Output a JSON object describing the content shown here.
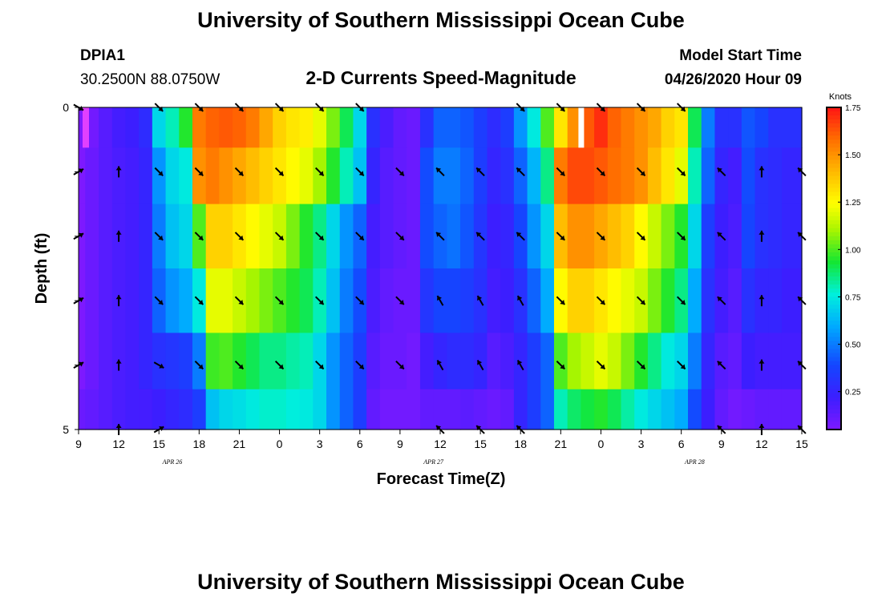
{
  "header": {
    "title": "University of Southern Mississippi Ocean Cube",
    "station_id": "DPIA1",
    "location": "30.2500N 88.0750W",
    "subtitle": "2-D Currents Speed-Magnitude",
    "model_label": "Model Start Time",
    "model_time": "04/26/2020 Hour 09"
  },
  "footer": {
    "title": "University of Southern Mississippi Ocean Cube"
  },
  "chart_data": {
    "type": "heatmap",
    "title": "2-D Currents Speed-Magnitude",
    "xlabel": "Forecast Time(Z)",
    "ylabel": "Depth (ft)",
    "x_tick_labels": [
      "9",
      "12",
      "15",
      "18",
      "21",
      "0",
      "3",
      "6",
      "9",
      "12",
      "15",
      "18",
      "21",
      "0",
      "3",
      "6",
      "9",
      "12",
      "15"
    ],
    "x_hours": [
      0,
      3,
      6,
      9,
      12,
      15,
      18,
      21,
      24,
      27,
      30,
      33,
      36,
      39,
      42,
      45,
      48,
      51,
      54
    ],
    "date_labels": [
      {
        "text": "APR 26",
        "hour": 7
      },
      {
        "text": "APR 27",
        "hour": 26.5
      },
      {
        "text": "APR 28",
        "hour": 46
      }
    ],
    "y_tick_labels": [
      "0",
      "5"
    ],
    "ylim": [
      0,
      5
    ],
    "depth_minor_ticks": [
      0,
      1,
      2,
      3,
      4,
      5
    ],
    "colorbar": {
      "unit": "Knots",
      "min": 0.05,
      "max": 1.75,
      "tick_labels": [
        "0.25",
        "0.50",
        "0.75",
        "1.00",
        "1.25",
        "1.50",
        "1.75"
      ],
      "tick_values": [
        0.25,
        0.5,
        0.75,
        1.0,
        1.25,
        1.5,
        1.75
      ]
    },
    "hours": [
      0,
      1,
      2,
      3,
      4,
      5,
      6,
      7,
      8,
      9,
      10,
      11,
      12,
      13,
      14,
      15,
      16,
      17,
      18,
      19,
      20,
      21,
      22,
      23,
      24,
      25,
      26,
      27,
      28,
      29,
      30,
      31,
      32,
      33,
      34,
      35,
      36,
      37,
      38,
      39,
      40,
      41,
      42,
      43,
      44,
      45,
      46,
      47,
      48,
      49,
      50,
      51,
      52,
      53,
      54
    ],
    "depth_layers": [
      {
        "depth": 0.25,
        "speed": [
          0.02,
          0.08,
          0.15,
          0.2,
          0.22,
          0.28,
          0.7,
          0.8,
          0.95,
          1.55,
          1.6,
          1.62,
          1.6,
          1.55,
          1.45,
          1.35,
          1.3,
          1.28,
          1.2,
          1.05,
          0.9,
          0.7,
          0.3,
          0.18,
          0.12,
          0.1,
          0.3,
          0.45,
          0.45,
          0.42,
          0.35,
          0.28,
          0.35,
          0.55,
          0.75,
          1.0,
          1.3,
          1.5,
          1.62,
          1.7,
          1.6,
          1.55,
          1.5,
          1.45,
          1.35,
          1.3,
          0.9,
          0.5,
          0.3,
          0.3,
          0.42,
          0.38,
          0.3,
          0.3,
          0.3
        ]
      },
      {
        "depth": 1.0,
        "speed": [
          0.05,
          0.1,
          0.15,
          0.18,
          0.2,
          0.25,
          0.55,
          0.7,
          0.75,
          1.5,
          1.55,
          1.5,
          1.45,
          1.4,
          1.35,
          1.3,
          1.25,
          1.2,
          1.1,
          0.95,
          0.8,
          0.65,
          0.25,
          0.15,
          0.12,
          0.1,
          0.4,
          0.5,
          0.5,
          0.45,
          0.35,
          0.25,
          0.3,
          0.45,
          0.62,
          0.85,
          1.55,
          1.65,
          1.65,
          1.62,
          1.58,
          1.55,
          1.5,
          1.4,
          1.3,
          1.2,
          0.8,
          0.45,
          0.25,
          0.2,
          0.4,
          0.3,
          0.28,
          0.25,
          0.25
        ]
      },
      {
        "depth": 2.0,
        "speed": [
          0.05,
          0.1,
          0.15,
          0.18,
          0.2,
          0.25,
          0.5,
          0.65,
          0.7,
          1.0,
          1.35,
          1.35,
          1.3,
          1.25,
          1.2,
          1.15,
          1.05,
          0.95,
          0.85,
          0.7,
          0.55,
          0.45,
          0.2,
          0.15,
          0.12,
          0.1,
          0.4,
          0.45,
          0.48,
          0.42,
          0.32,
          0.22,
          0.25,
          0.38,
          0.55,
          0.7,
          1.4,
          1.5,
          1.5,
          1.45,
          1.4,
          1.35,
          1.25,
          1.15,
          1.05,
          0.95,
          0.7,
          0.35,
          0.22,
          0.18,
          0.38,
          0.3,
          0.28,
          0.25,
          0.25
        ]
      },
      {
        "depth": 3.0,
        "speed": [
          0.05,
          0.1,
          0.15,
          0.18,
          0.2,
          0.25,
          0.45,
          0.55,
          0.6,
          0.75,
          1.2,
          1.2,
          1.15,
          1.1,
          1.05,
          1.0,
          0.95,
          0.9,
          0.8,
          0.65,
          0.5,
          0.4,
          0.18,
          0.12,
          0.1,
          0.1,
          0.32,
          0.38,
          0.38,
          0.35,
          0.3,
          0.2,
          0.22,
          0.3,
          0.45,
          0.6,
          1.25,
          1.35,
          1.35,
          1.3,
          1.25,
          1.2,
          1.15,
          1.05,
          0.95,
          0.85,
          0.6,
          0.3,
          0.2,
          0.15,
          0.3,
          0.25,
          0.25,
          0.22,
          0.22
        ]
      },
      {
        "depth": 4.0,
        "speed": [
          0.05,
          0.1,
          0.15,
          0.18,
          0.2,
          0.25,
          0.3,
          0.32,
          0.35,
          0.5,
          0.98,
          1.0,
          0.95,
          0.9,
          0.85,
          0.85,
          0.82,
          0.8,
          0.7,
          0.55,
          0.45,
          0.35,
          0.15,
          0.1,
          0.1,
          0.08,
          0.2,
          0.25,
          0.28,
          0.28,
          0.25,
          0.15,
          0.18,
          0.25,
          0.35,
          0.45,
          1.0,
          1.1,
          1.15,
          1.2,
          1.15,
          1.05,
          0.95,
          0.85,
          0.75,
          0.7,
          0.5,
          0.25,
          0.15,
          0.12,
          0.22,
          0.2,
          0.2,
          0.2,
          0.2
        ]
      },
      {
        "depth": 4.75,
        "speed": [
          0.1,
          0.12,
          0.15,
          0.18,
          0.2,
          0.2,
          0.22,
          0.25,
          0.28,
          0.35,
          0.65,
          0.7,
          0.72,
          0.75,
          0.78,
          0.78,
          0.76,
          0.75,
          0.7,
          0.55,
          0.45,
          0.35,
          0.12,
          0.08,
          0.08,
          0.08,
          0.12,
          0.12,
          0.12,
          0.14,
          0.12,
          0.1,
          0.12,
          0.25,
          0.35,
          0.45,
          0.8,
          0.88,
          0.92,
          0.95,
          0.9,
          0.82,
          0.75,
          0.7,
          0.65,
          0.6,
          0.4,
          0.22,
          0.12,
          0.08,
          0.1,
          0.12,
          0.12,
          0.12,
          0.12
        ]
      }
    ],
    "marker_hour": 37.5,
    "marker_note": "white column at top layer",
    "arrow_hours": [
      0,
      3,
      6,
      9,
      12,
      15,
      18,
      21,
      24,
      27,
      30,
      33,
      36,
      39,
      42,
      45,
      48,
      51,
      54
    ],
    "arrow_depths": [
      0,
      1,
      2,
      3,
      4,
      5
    ],
    "arrow_directions_deg": [
      [
        120,
        null,
        135,
        135,
        135,
        135,
        135,
        135,
        null,
        null,
        null,
        135,
        135,
        135,
        135,
        135,
        null,
        null,
        null
      ],
      [
        60,
        0,
        135,
        135,
        135,
        135,
        135,
        135,
        135,
        315,
        315,
        315,
        135,
        135,
        135,
        135,
        315,
        0,
        315
      ],
      [
        60,
        0,
        135,
        135,
        135,
        135,
        135,
        135,
        135,
        315,
        315,
        315,
        135,
        135,
        135,
        135,
        315,
        0,
        315
      ],
      [
        60,
        0,
        135,
        135,
        135,
        135,
        135,
        135,
        135,
        330,
        330,
        330,
        135,
        135,
        135,
        135,
        315,
        0,
        315
      ],
      [
        60,
        0,
        120,
        135,
        135,
        135,
        135,
        135,
        135,
        330,
        330,
        330,
        135,
        135,
        135,
        135,
        315,
        0,
        315
      ],
      [
        null,
        0,
        60,
        null,
        null,
        null,
        null,
        null,
        null,
        315,
        315,
        315,
        null,
        null,
        null,
        null,
        315,
        0,
        315
      ]
    ]
  }
}
